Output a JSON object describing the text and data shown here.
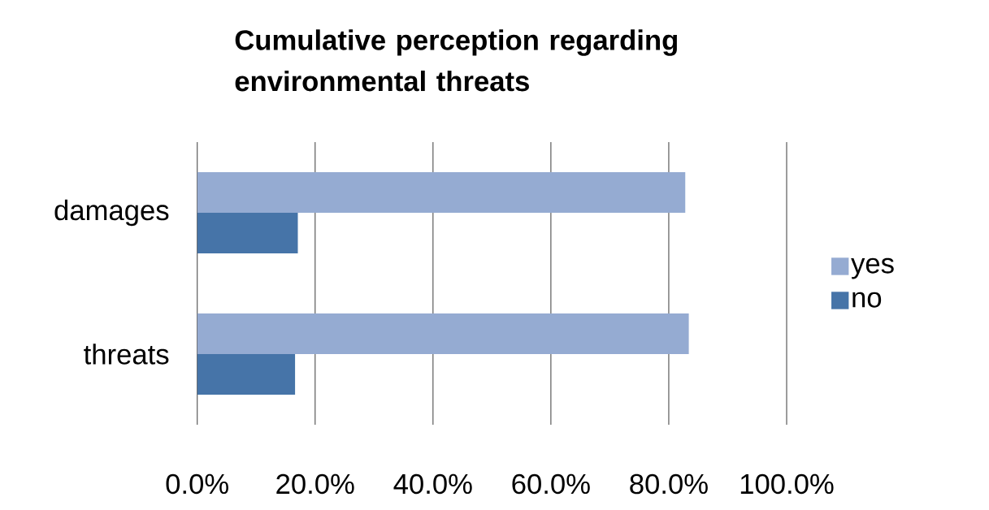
{
  "chart_data": {
    "type": "bar",
    "orientation": "horizontal",
    "title": "Cumulative perception regarding environmental threats",
    "categories": [
      "damages",
      "threats"
    ],
    "series": [
      {
        "name": "yes",
        "color": "#95abd2",
        "values": [
          82.8,
          83.4
        ]
      },
      {
        "name": "no",
        "color": "#4674a8",
        "values": [
          17.1,
          16.6
        ]
      }
    ],
    "xlim": [
      0,
      100
    ],
    "xticks": [
      {
        "value": 0,
        "label": "0.0%"
      },
      {
        "value": 20,
        "label": "20.0%"
      },
      {
        "value": 40,
        "label": "40.0%"
      },
      {
        "value": 60,
        "label": "60.0%"
      },
      {
        "value": 80,
        "label": "80.0%"
      },
      {
        "value": 100,
        "label": "100.0%"
      }
    ],
    "grid": "x",
    "legend": "right"
  }
}
